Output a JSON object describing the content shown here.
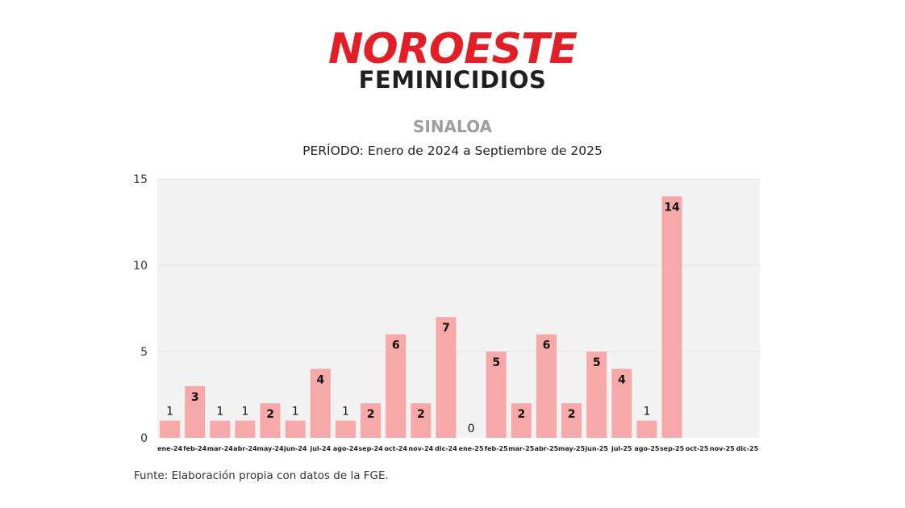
{
  "brand": {
    "logo_text": "NOROESTE",
    "color": "#e21f26"
  },
  "header": {
    "headline": "FEMINICIDIOS"
  },
  "chart_data": {
    "type": "bar",
    "title": "SINALOA",
    "subtitle": "PERÍODO: Enero de 2024 a Septiembre de 2025",
    "categories": [
      "ene-24",
      "feb-24",
      "mar-24",
      "abr-24",
      "may-24",
      "jun-24",
      "jul-24",
      "ago-24",
      "sep-24",
      "oct-24",
      "nov-24",
      "dic-24",
      "ene-25",
      "feb-25",
      "mar-25",
      "abr-25",
      "may-25",
      "jun-25",
      "jul-25",
      "ago-25",
      "sep-25",
      "oct-25",
      "nov-25",
      "dic-25"
    ],
    "values": [
      1,
      3,
      1,
      1,
      2,
      1,
      4,
      1,
      2,
      6,
      2,
      7,
      0,
      5,
      2,
      6,
      2,
      5,
      4,
      1,
      14,
      null,
      null,
      null
    ],
    "ylim": [
      0,
      15
    ],
    "yticks": [
      0,
      5,
      10,
      15
    ],
    "grid": true,
    "bar_color": "#f7a8a8",
    "plot_background": "#f2f2f2",
    "xlabel": "",
    "ylabel": ""
  },
  "footer": {
    "source": "Funte: Elaboración propia con datos de la FGE."
  }
}
